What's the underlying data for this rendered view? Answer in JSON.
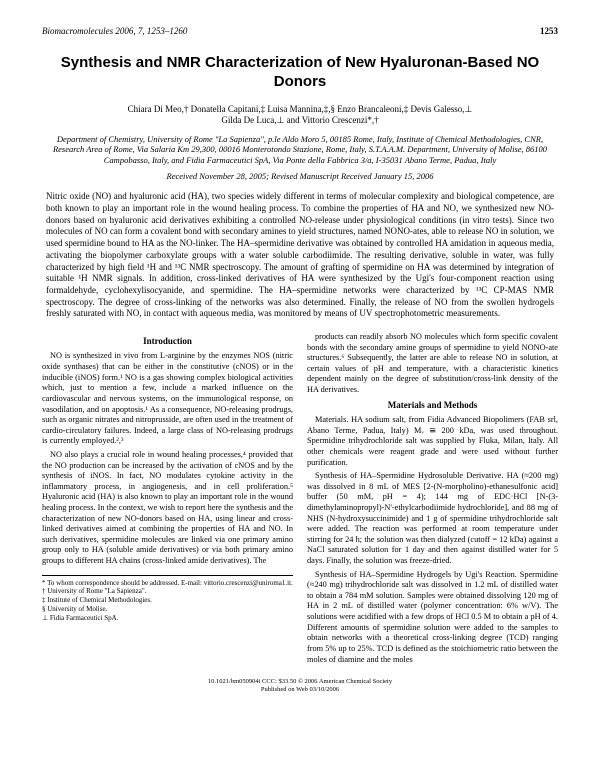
{
  "header": {
    "journal": "Biomacromolecules",
    "year_vol_pages": "2006, 7, 1253–1260",
    "page": "1253"
  },
  "title": "Synthesis and NMR Characterization of New Hyaluronan-Based NO Donors",
  "authors_line1": "Chiara Di Meo,† Donatella Capitani,‡ Luisa Mannina,‡,§ Enzo Brancaleoni,‡ Devis Galesso,⊥",
  "authors_line2": "Gilda De Luca,⊥ and Vittorio Crescenzi*,†",
  "affiliation": "Department of Chemistry, University of Rome \"La Sapienza\", p.le Aldo Moro 5, 00185 Rome, Italy, Institute of Chemical Methodologies, CNR, Research Area of Rome, Via Salaria Km 29,300, 00016 Monterotondo Stazione, Rome, Italy, S.T.A.A.M. Department, University of Molise, 86100 Campobasso, Italy, and Fidia Farmaceutici SpA, Via Ponte della Fabbrica 3/a, I-35031 Abano Terme, Padua, Italy",
  "dates": "Received November 28, 2005; Revised Manuscript Received January 15, 2006",
  "abstract": "Nitric oxide (NO) and hyaluronic acid (HA), two species widely different in terms of molecular complexity and biological competence, are both known to play an important role in the wound healing process. To combine the properties of HA and NO, we synthesized new NO-donors based on hyaluronic acid derivatives exhibiting a controlled NO-release under physiological conditions (in vitro tests). Since two molecules of NO can form a covalent bond with secondary amines to yield structures, named NONO-ates, able to release NO in solution, we used spermidine bound to HA as the NO-linker. The HA–spermidine derivative was obtained by controlled HA amidation in aqueous media, activating the biopolymer carboxylate groups with a water soluble carbodiimide. The resulting derivative, soluble in water, was fully characterized by high field ¹H and ¹³C NMR spectroscopy. The amount of grafting of spermidine on HA was determined by integration of suitable ¹H NMR signals. In addition, cross-linked derivatives of HA were synthesized by the Ugi's four-component reaction using formaldehyde, cyclohexylisocyanide, and spermidine. The HA–spermidine networks were characterized by ¹³C CP-MAS NMR spectroscopy. The degree of cross-linking of the networks was also determined. Finally, the release of NO from the swollen hydrogels freshly saturated with NO, in contact with aqueous media, was monitored by means of UV spectrophotometric measurements.",
  "left": {
    "heading": "Introduction",
    "p1": "NO is synthesized in vivo from L-arginine by the enzymes NOS (nitric oxide synthases) that can be either in the constitutive (cNOS) or in the inducible (iNOS) form.¹ NO is a gas showing complex biological activities which, just to mention a few, include a marked influence on the cardiovascular and nervous systems, on the immunological response, on vasodilation, and on apoptosis.¹ As a consequence, NO-releasing prodrugs, such as organic nitrates and nitroprusside, are often used in the treatment of cardio-circulatory failures. Indeed, a large class of NO-releasing prodrugs is currently employed.²,³",
    "p2": "NO also plays a crucial role in wound healing processes,⁴ provided that the NO production can be increased by the activation of cNOS and by the synthesis of iNOS. In fact, NO modulates cytokine activity in the inflammatory process, in angiogenesis, and in cell proliferation.⁵ Hyaluronic acid (HA) is also known to play an important role in the wound healing process. In the context, we wish to report here the synthesis and the characterization of new NO-donors based on HA, using linear and cross-linked derivatives aimed at combining the properties of HA and NO. In such derivatives, spermidine molecules are linked via one primary amino group only to HA (soluble amide derivatives) or via both primary amino groups to different HA chains (cross-linked amide derivatives). The",
    "fn_star": "* To whom correspondence should be addressed. E-mail: vittorio.crescenzi@uniroma1.it.",
    "fn1": "† University of Rome \"La Sapienza\".",
    "fn2": "‡ Institute of Chemical Methodologies.",
    "fn3": "§ University of Molise.",
    "fn4": "⊥ Fidia Farmaceutici SpA."
  },
  "right": {
    "p1": "products can readily absorb NO molecules which form specific covalent bonds with the secondary amine groups of spermidine to yield NONO-ate structures.⁶ Subsequently, the latter are able to release NO in solution, at certain values of pH and temperature, with a characteristic kinetics dependent mainly on the degree of substitution/cross-link density of the HA derivatives.",
    "heading": "Materials and Methods",
    "p2": "Materials. HA sodium salt, from Fidia Advanced Biopolimers (FAB srl, Abano Terme, Padua, Italy) Mᵥ ≅ 200 kDa, was used throughout. Spermidine trihydrochloride salt was supplied by Fluka, Milan, Italy. All other chemicals were reagent grade and were used without further purification.",
    "p3": "Synthesis of HA–Spermidine Hydrosoluble Derivative. HA (≈200 mg) was dissolved in 8 mL of MES [2-(N-morpholino)-ethanesulfonic acid] buffer (50 mM, pH = 4); 144 mg of EDC·HCl [N-(3-dimethylaminopropyl)-N'-ethylcarbodiimide hydrochloride], and 88 mg of NHS (N-hydroxysuccinimide) and 1 g of spermidine trihydrochloride salt were added. The reaction was performed at room temperature under stirring for 24 h; the solution was then dialyzed (cutoff = 12 kDa) against a NaCl saturated solution for 1 day and then against distilled water for 5 days. Finally, the solution was freeze-dried.",
    "p4": "Synthesis of HA–Spermidine Hydrogels by Ugi's Reaction. Spermidine (≈240 mg) trihydrochloride salt was dissolved in 1.2 mL of distilled water to obtain a 784 mM solution. Samples were obtained dissolving 120 mg of HA in 2 mL of distilled water (polymer concentration: 6% w/V). The solutions were acidified with a few drops of HCl 0.5 M to obtain a pH of 4. Different amounts of spermidine solution were added to the samples to obtain networks with a theoretical cross-linking degree (TCD) ranging from 5% up to 25%. TCD is defined as the stoichiometric ratio between the moles of diamine and the moles"
  },
  "footer": {
    "line1": "10.1021/bm050904i CCC: $33.50   © 2006 American Chemical Society",
    "line2": "Published on Web 03/10/2006"
  }
}
